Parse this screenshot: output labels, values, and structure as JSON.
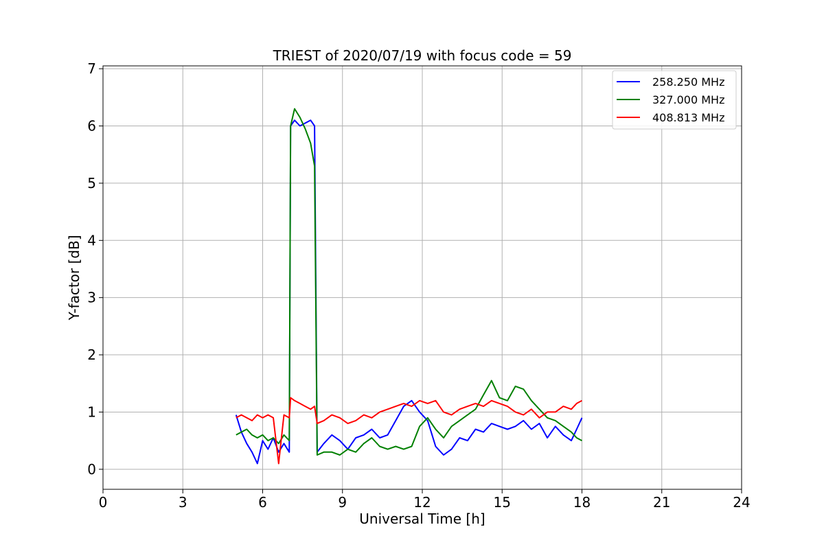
{
  "chart_data": {
    "type": "line",
    "title": "TRIEST of 2020/07/19 with focus code = 59",
    "xlabel": "Universal Time [h]",
    "ylabel": "Y-factor [dB]",
    "xlim": [
      0,
      24
    ],
    "ylim": [
      -0.35,
      7.05
    ],
    "xticks": [
      0,
      3,
      6,
      9,
      12,
      15,
      18,
      21,
      24
    ],
    "yticks": [
      0,
      1,
      2,
      3,
      4,
      5,
      6,
      7
    ],
    "grid": true,
    "legend_position": "top-right",
    "series": [
      {
        "name": "258.250 MHz",
        "color": "#0000ff",
        "x": [
          5.0,
          5.2,
          5.4,
          5.6,
          5.8,
          6.0,
          6.2,
          6.4,
          6.6,
          6.8,
          7.0,
          7.05,
          7.2,
          7.4,
          7.6,
          7.8,
          7.95,
          8.05,
          8.3,
          8.6,
          8.9,
          9.2,
          9.5,
          9.8,
          10.1,
          10.4,
          10.7,
          11.0,
          11.3,
          11.6,
          11.9,
          12.2,
          12.5,
          12.8,
          13.1,
          13.4,
          13.7,
          14.0,
          14.3,
          14.6,
          14.9,
          15.2,
          15.5,
          15.8,
          16.1,
          16.4,
          16.7,
          17.0,
          17.3,
          17.6,
          17.8,
          18.0
        ],
        "y": [
          0.95,
          0.65,
          0.45,
          0.3,
          0.1,
          0.5,
          0.35,
          0.55,
          0.3,
          0.45,
          0.3,
          6.0,
          6.1,
          6.0,
          6.05,
          6.1,
          6.0,
          0.3,
          0.45,
          0.6,
          0.5,
          0.35,
          0.55,
          0.6,
          0.7,
          0.55,
          0.6,
          0.85,
          1.1,
          1.2,
          1.0,
          0.85,
          0.4,
          0.25,
          0.35,
          0.55,
          0.5,
          0.7,
          0.65,
          0.8,
          0.75,
          0.7,
          0.75,
          0.85,
          0.7,
          0.8,
          0.55,
          0.75,
          0.6,
          0.5,
          0.7,
          0.9
        ]
      },
      {
        "name": "327.000 MHz",
        "color": "#008000",
        "x": [
          5.0,
          5.2,
          5.4,
          5.6,
          5.8,
          6.0,
          6.2,
          6.4,
          6.6,
          6.8,
          7.0,
          7.05,
          7.2,
          7.4,
          7.6,
          7.8,
          7.95,
          8.05,
          8.3,
          8.6,
          8.9,
          9.2,
          9.5,
          9.8,
          10.1,
          10.4,
          10.7,
          11.0,
          11.3,
          11.6,
          11.9,
          12.2,
          12.5,
          12.8,
          13.1,
          13.4,
          13.7,
          14.0,
          14.3,
          14.6,
          14.9,
          15.2,
          15.5,
          15.8,
          16.1,
          16.4,
          16.7,
          17.0,
          17.3,
          17.6,
          17.8,
          18.0
        ],
        "y": [
          0.6,
          0.65,
          0.7,
          0.6,
          0.55,
          0.6,
          0.5,
          0.55,
          0.45,
          0.6,
          0.5,
          6.0,
          6.3,
          6.15,
          5.95,
          5.7,
          5.3,
          0.25,
          0.3,
          0.3,
          0.25,
          0.35,
          0.3,
          0.45,
          0.55,
          0.4,
          0.35,
          0.4,
          0.35,
          0.4,
          0.75,
          0.9,
          0.7,
          0.55,
          0.75,
          0.85,
          0.95,
          1.05,
          1.3,
          1.55,
          1.25,
          1.2,
          1.45,
          1.4,
          1.2,
          1.05,
          0.9,
          0.85,
          0.75,
          0.65,
          0.55,
          0.5
        ]
      },
      {
        "name": "408.813 MHz",
        "color": "#ff0000",
        "x": [
          5.0,
          5.2,
          5.4,
          5.6,
          5.8,
          6.0,
          6.2,
          6.4,
          6.6,
          6.8,
          7.0,
          7.05,
          7.2,
          7.4,
          7.6,
          7.8,
          7.95,
          8.05,
          8.3,
          8.6,
          8.9,
          9.2,
          9.5,
          9.8,
          10.1,
          10.4,
          10.7,
          11.0,
          11.3,
          11.6,
          11.9,
          12.2,
          12.5,
          12.8,
          13.1,
          13.4,
          13.7,
          14.0,
          14.3,
          14.6,
          14.9,
          15.2,
          15.5,
          15.8,
          16.1,
          16.4,
          16.7,
          17.0,
          17.3,
          17.6,
          17.8,
          18.0
        ],
        "y": [
          0.9,
          0.95,
          0.9,
          0.85,
          0.95,
          0.9,
          0.95,
          0.9,
          0.1,
          0.95,
          0.9,
          1.25,
          1.2,
          1.15,
          1.1,
          1.05,
          1.1,
          0.8,
          0.85,
          0.95,
          0.9,
          0.8,
          0.85,
          0.95,
          0.9,
          1.0,
          1.05,
          1.1,
          1.15,
          1.1,
          1.2,
          1.15,
          1.2,
          1.0,
          0.95,
          1.05,
          1.1,
          1.15,
          1.1,
          1.2,
          1.15,
          1.1,
          1.0,
          0.95,
          1.05,
          0.9,
          1.0,
          1.0,
          1.1,
          1.05,
          1.15,
          1.2
        ]
      }
    ]
  }
}
